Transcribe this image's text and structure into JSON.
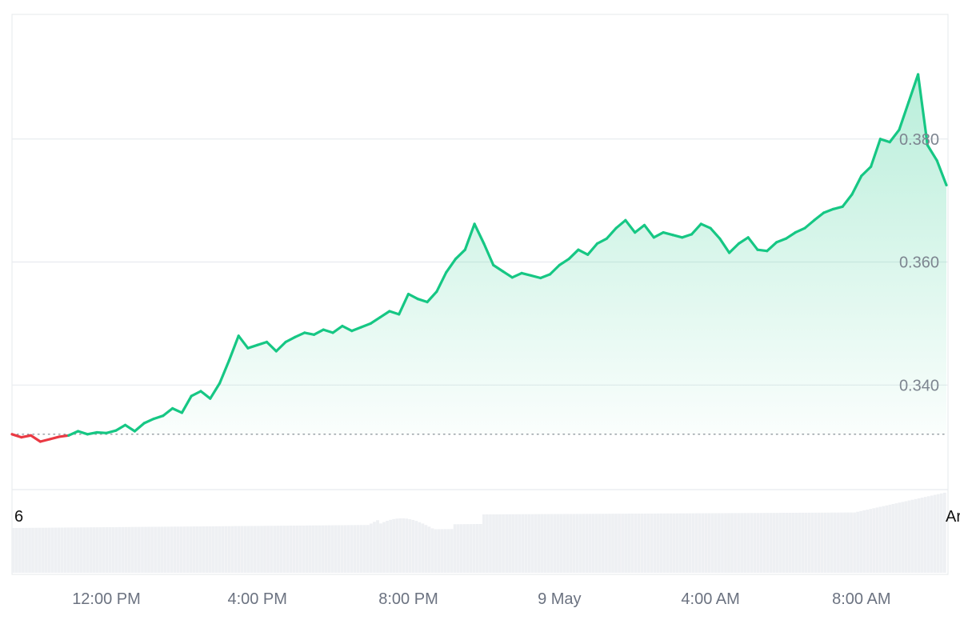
{
  "colors": {
    "up": "#16c784",
    "down": "#ea3943",
    "grid": "#e8ebef",
    "frame": "#e6e8eb",
    "volume": "#eef0f3",
    "baseline": "#9aa0a6",
    "tick": "#6b7280"
  },
  "chart_data": {
    "type": "area",
    "title": "",
    "xlabel": "",
    "ylabel": "",
    "x_ticks": [
      "12:00 PM",
      "4:00 PM",
      "8:00 PM",
      "9 May",
      "4:00 AM",
      "8:00 AM"
    ],
    "y_ticks": [
      "0.340",
      "0.360",
      "0.380"
    ],
    "ylim": [
      0.323,
      0.4
    ],
    "baseline": 0.332,
    "grid": true,
    "edge_labels": {
      "left": "6",
      "right": "Ar"
    },
    "series": [
      {
        "x_hours": [
          0,
          0.25,
          0.5,
          0.75,
          1.0,
          1.25,
          1.5,
          1.75,
          2.0,
          2.25,
          2.5,
          2.75,
          3.0,
          3.25,
          3.5,
          3.75,
          4.0,
          4.25,
          4.5,
          4.75,
          5.0,
          5.25,
          5.5,
          5.75,
          6.0,
          6.25,
          6.5,
          6.75,
          7.0,
          7.25,
          7.5,
          7.75,
          8.0,
          8.25,
          8.5,
          8.75,
          9.0,
          9.25,
          9.5,
          9.75,
          10.0,
          10.25,
          10.5,
          10.75,
          11.0,
          11.25,
          11.5,
          11.75,
          12.0,
          12.25,
          12.5,
          12.75,
          13.0,
          13.25,
          13.5,
          13.75,
          14.0,
          14.25,
          14.5,
          14.75,
          15.0,
          15.25,
          15.5,
          15.75,
          16.0,
          16.25,
          16.5,
          16.75,
          17.0,
          17.25,
          17.5,
          17.75,
          18.0,
          18.25,
          18.5,
          18.75,
          19.0,
          19.25,
          19.5,
          19.75,
          20.0,
          20.25,
          20.5,
          20.75,
          21.0,
          21.25,
          21.5,
          21.75,
          22.0,
          22.25,
          22.5,
          22.75,
          23.0,
          23.25,
          23.5,
          23.75,
          24.0,
          24.25,
          24.5,
          24.75
        ],
        "values": [
          0.332,
          0.3315,
          0.3318,
          0.3308,
          0.3312,
          0.3316,
          0.3318,
          0.3325,
          0.332,
          0.3323,
          0.3322,
          0.3326,
          0.3335,
          0.3325,
          0.3338,
          0.3345,
          0.335,
          0.3362,
          0.3355,
          0.3382,
          0.339,
          0.3378,
          0.3403,
          0.344,
          0.348,
          0.346,
          0.3465,
          0.347,
          0.3455,
          0.347,
          0.3478,
          0.3485,
          0.3482,
          0.349,
          0.3485,
          0.3496,
          0.3488,
          0.3494,
          0.35,
          0.351,
          0.352,
          0.3515,
          0.3548,
          0.354,
          0.3535,
          0.3552,
          0.3583,
          0.3605,
          0.362,
          0.3662,
          0.363,
          0.3595,
          0.3585,
          0.3575,
          0.3582,
          0.3578,
          0.3574,
          0.358,
          0.3595,
          0.3605,
          0.362,
          0.3612,
          0.363,
          0.3638,
          0.3655,
          0.3668,
          0.3648,
          0.366,
          0.364,
          0.3648,
          0.3644,
          0.364,
          0.3645,
          0.3662,
          0.3655,
          0.3638,
          0.3615,
          0.363,
          0.364,
          0.362,
          0.3618,
          0.3632,
          0.3638,
          0.3648,
          0.3655,
          0.3668,
          0.368,
          0.3686,
          0.369,
          0.371,
          0.374,
          0.3755,
          0.38,
          0.3795,
          0.3815,
          0.386,
          0.3905,
          0.379,
          0.3765,
          0.3725
        ]
      }
    ]
  }
}
